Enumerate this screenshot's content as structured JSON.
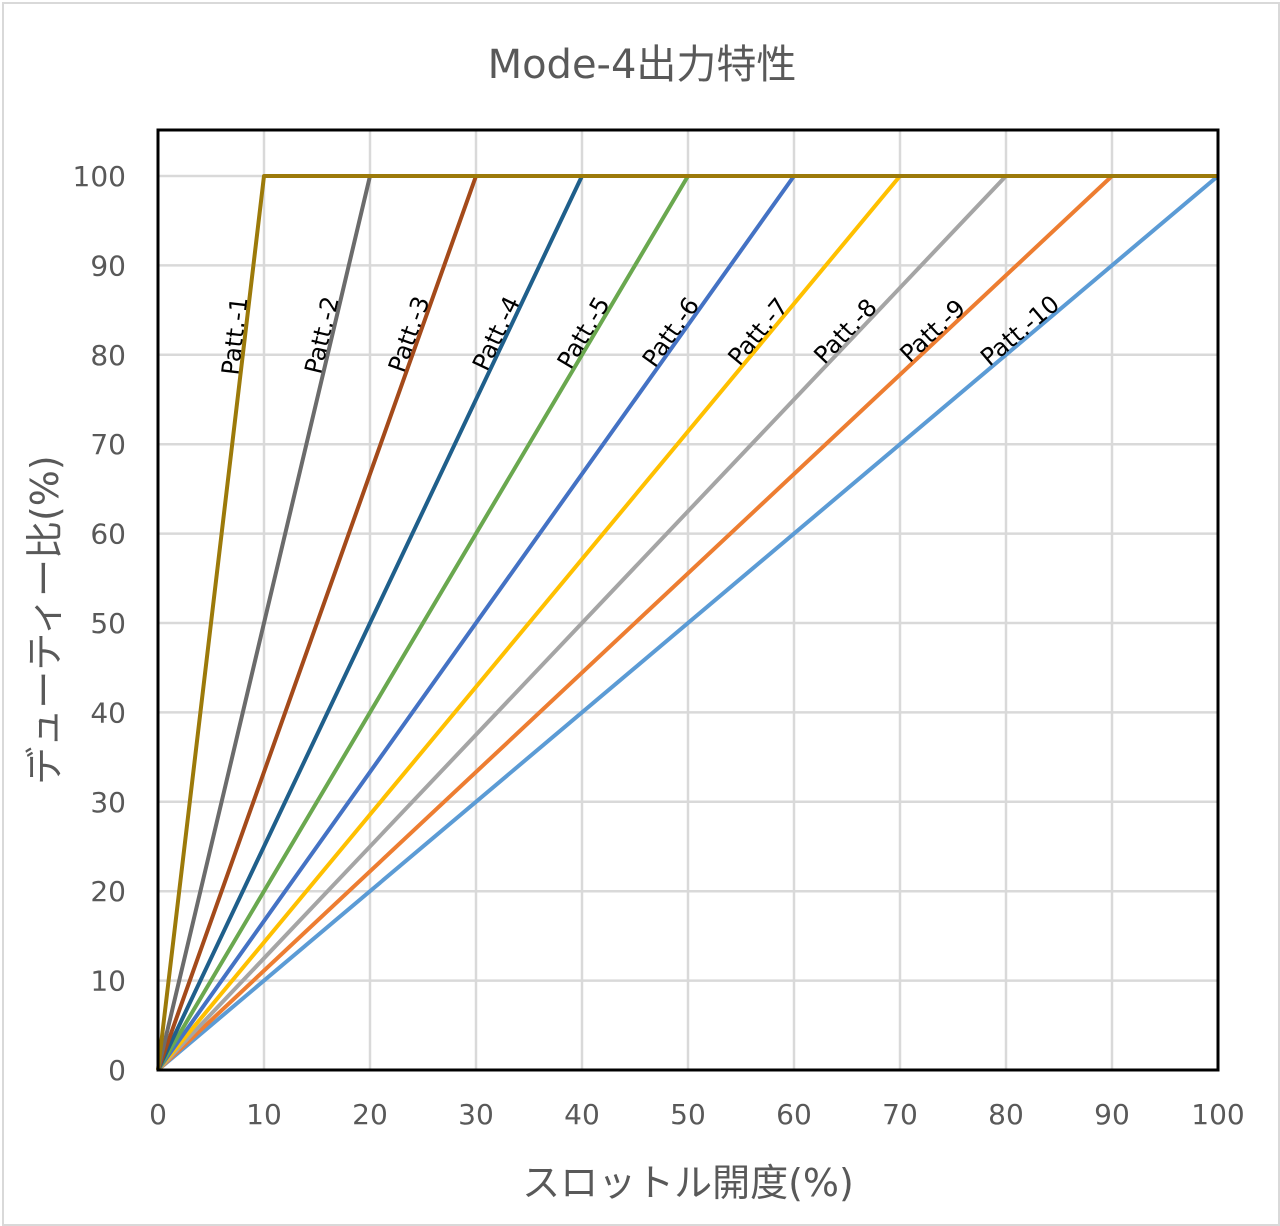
{
  "chart_data": {
    "type": "line",
    "title": "Mode-4出力特性",
    "xlabel": "スロットル開度(%)",
    "ylabel": "デューティー比(%)",
    "xlim": [
      0,
      100
    ],
    "ylim": [
      0,
      100
    ],
    "xticks": [
      0,
      10,
      20,
      30,
      40,
      50,
      60,
      70,
      80,
      90,
      100
    ],
    "yticks": [
      0,
      10,
      20,
      30,
      40,
      50,
      60,
      70,
      80,
      90,
      100
    ],
    "grid": true,
    "legend": "none",
    "series": [
      {
        "name": "Patt.-1",
        "color": "#9c7a0a",
        "x": [
          0,
          10,
          100
        ],
        "y": [
          0,
          100,
          100
        ]
      },
      {
        "name": "Patt.-2",
        "color": "#6b6b6b",
        "x": [
          0,
          20,
          100
        ],
        "y": [
          0,
          100,
          100
        ]
      },
      {
        "name": "Patt.-3",
        "color": "#a44a1a",
        "x": [
          0,
          30,
          100
        ],
        "y": [
          0,
          100,
          100
        ]
      },
      {
        "name": "Patt.-4",
        "color": "#1f5f8b",
        "x": [
          0,
          40,
          100
        ],
        "y": [
          0,
          100,
          100
        ]
      },
      {
        "name": "Patt.-5",
        "color": "#6aa84f",
        "x": [
          0,
          50,
          100
        ],
        "y": [
          0,
          100,
          100
        ]
      },
      {
        "name": "Patt.-6",
        "color": "#4472c4",
        "x": [
          0,
          60,
          100
        ],
        "y": [
          0,
          100,
          100
        ]
      },
      {
        "name": "Patt.-7",
        "color": "#ffc000",
        "x": [
          0,
          70,
          100
        ],
        "y": [
          0,
          100,
          100
        ]
      },
      {
        "name": "Patt.-8",
        "color": "#a5a5a5",
        "x": [
          0,
          80,
          100
        ],
        "y": [
          0,
          100,
          100
        ]
      },
      {
        "name": "Patt.-9",
        "color": "#ed7d31",
        "x": [
          0,
          90,
          100
        ],
        "y": [
          0,
          100,
          100
        ]
      },
      {
        "name": "Patt.-10",
        "color": "#5b9bd5",
        "x": [
          0,
          100
        ],
        "y": [
          0,
          100
        ]
      }
    ]
  }
}
